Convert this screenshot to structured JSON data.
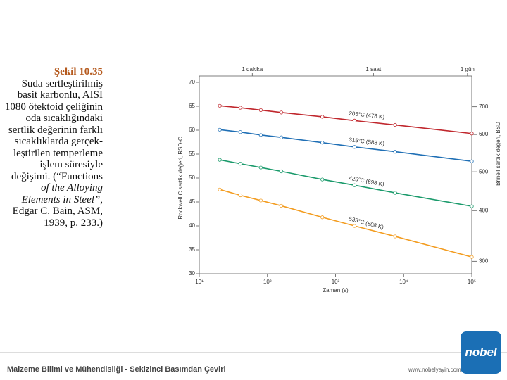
{
  "caption": {
    "title": "Şekil 10.35",
    "lines": [
      "Suda sertleştirilmiş",
      "basit karbonlu, AISI",
      "1080 ötektoid çeliğinin",
      "oda sıcaklığındaki",
      "sertlik değerinin farklı",
      "sıcaklıklarda gerçek-",
      "leştirilen temperleme",
      "işlem süresiyle",
      "değişimi. (“Functions",
      "of the Alloying",
      "Elements in Steel”,",
      "Edgar C. Bain, ASM,",
      "1939, p. 233.)"
    ],
    "italic_lines": [
      9,
      10
    ]
  },
  "footer": {
    "title": "Malzeme Bilimi ve Mühendisliği - Sekizinci Basımdan Çeviri",
    "url": "www.nobelyayin.com",
    "logo": "nobel"
  },
  "chart_data": {
    "type": "line",
    "log_x": true,
    "xlabel": "Zaman (s)",
    "ylabel": "Rockwell C sertlik değeri, RSD-C",
    "y2label": "Brinell sertlik değeri, BSD",
    "x": [
      20,
      40,
      80,
      160,
      640,
      1900,
      7500,
      100000
    ],
    "xlim": [
      10,
      100000
    ],
    "xticks": [
      {
        "value": 10,
        "label": "10¹"
      },
      {
        "value": 100,
        "label": "10²"
      },
      {
        "value": 1000,
        "label": "10³"
      },
      {
        "value": 10000,
        "label": "10⁴"
      },
      {
        "value": 100000,
        "label": "10⁵"
      }
    ],
    "x2ticks": [
      {
        "value": 60,
        "label": "1 dakika"
      },
      {
        "value": 3600,
        "label": "1 saat"
      },
      {
        "value": 86400,
        "label": "1 gün"
      }
    ],
    "ylim": [
      30,
      70
    ],
    "yticks": [
      30,
      35,
      40,
      45,
      50,
      55,
      60,
      65,
      70
    ],
    "y2ticks": [
      700,
      600,
      500,
      400,
      300
    ],
    "y2ticks_hrc": [
      64.9,
      59.1,
      51.3,
      43.2,
      32.6
    ],
    "series": [
      {
        "name": "205°C (478 K)",
        "color": "#c0272d",
        "values": [
          65.1,
          64.7,
          64.2,
          63.7,
          62.8,
          62.0,
          61.1,
          59.3
        ]
      },
      {
        "name": "315°C (588 K)",
        "color": "#1f6fb5",
        "values": [
          60.1,
          59.6,
          59.0,
          58.5,
          57.4,
          56.5,
          55.5,
          53.5
        ]
      },
      {
        "name": "425°C (698 K)",
        "color": "#1a9a6b",
        "values": [
          53.8,
          53.0,
          52.2,
          51.4,
          49.7,
          48.5,
          46.9,
          44.1
        ]
      },
      {
        "name": "535°C (808 K)",
        "color": "#f39c1f",
        "values": [
          47.6,
          46.4,
          45.3,
          44.2,
          41.8,
          40.0,
          37.8,
          33.5
        ]
      }
    ]
  }
}
